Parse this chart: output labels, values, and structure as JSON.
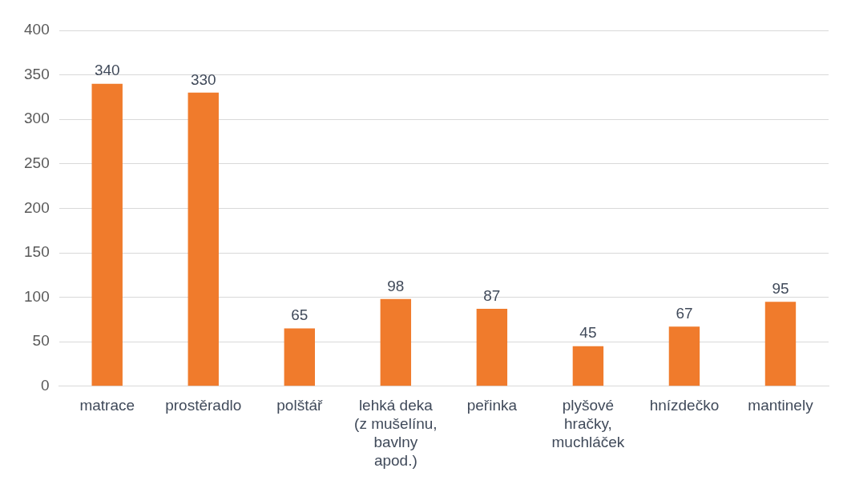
{
  "chart_data": {
    "type": "bar",
    "categories": [
      "matrace",
      "prostěradlo",
      "polštář",
      "lehká deka (z mušelínu, bavlny apod.)",
      "peřinka",
      "plyšové hračky, muchláček",
      "hnízdečko",
      "mantinely"
    ],
    "values": [
      340,
      330,
      65,
      98,
      87,
      45,
      67,
      95
    ],
    "color": "#f07b2c",
    "ylim": [
      0,
      400
    ],
    "yticks": [
      0,
      50,
      100,
      150,
      200,
      250,
      300,
      350,
      400
    ],
    "grid": "y",
    "data_labels": true
  }
}
